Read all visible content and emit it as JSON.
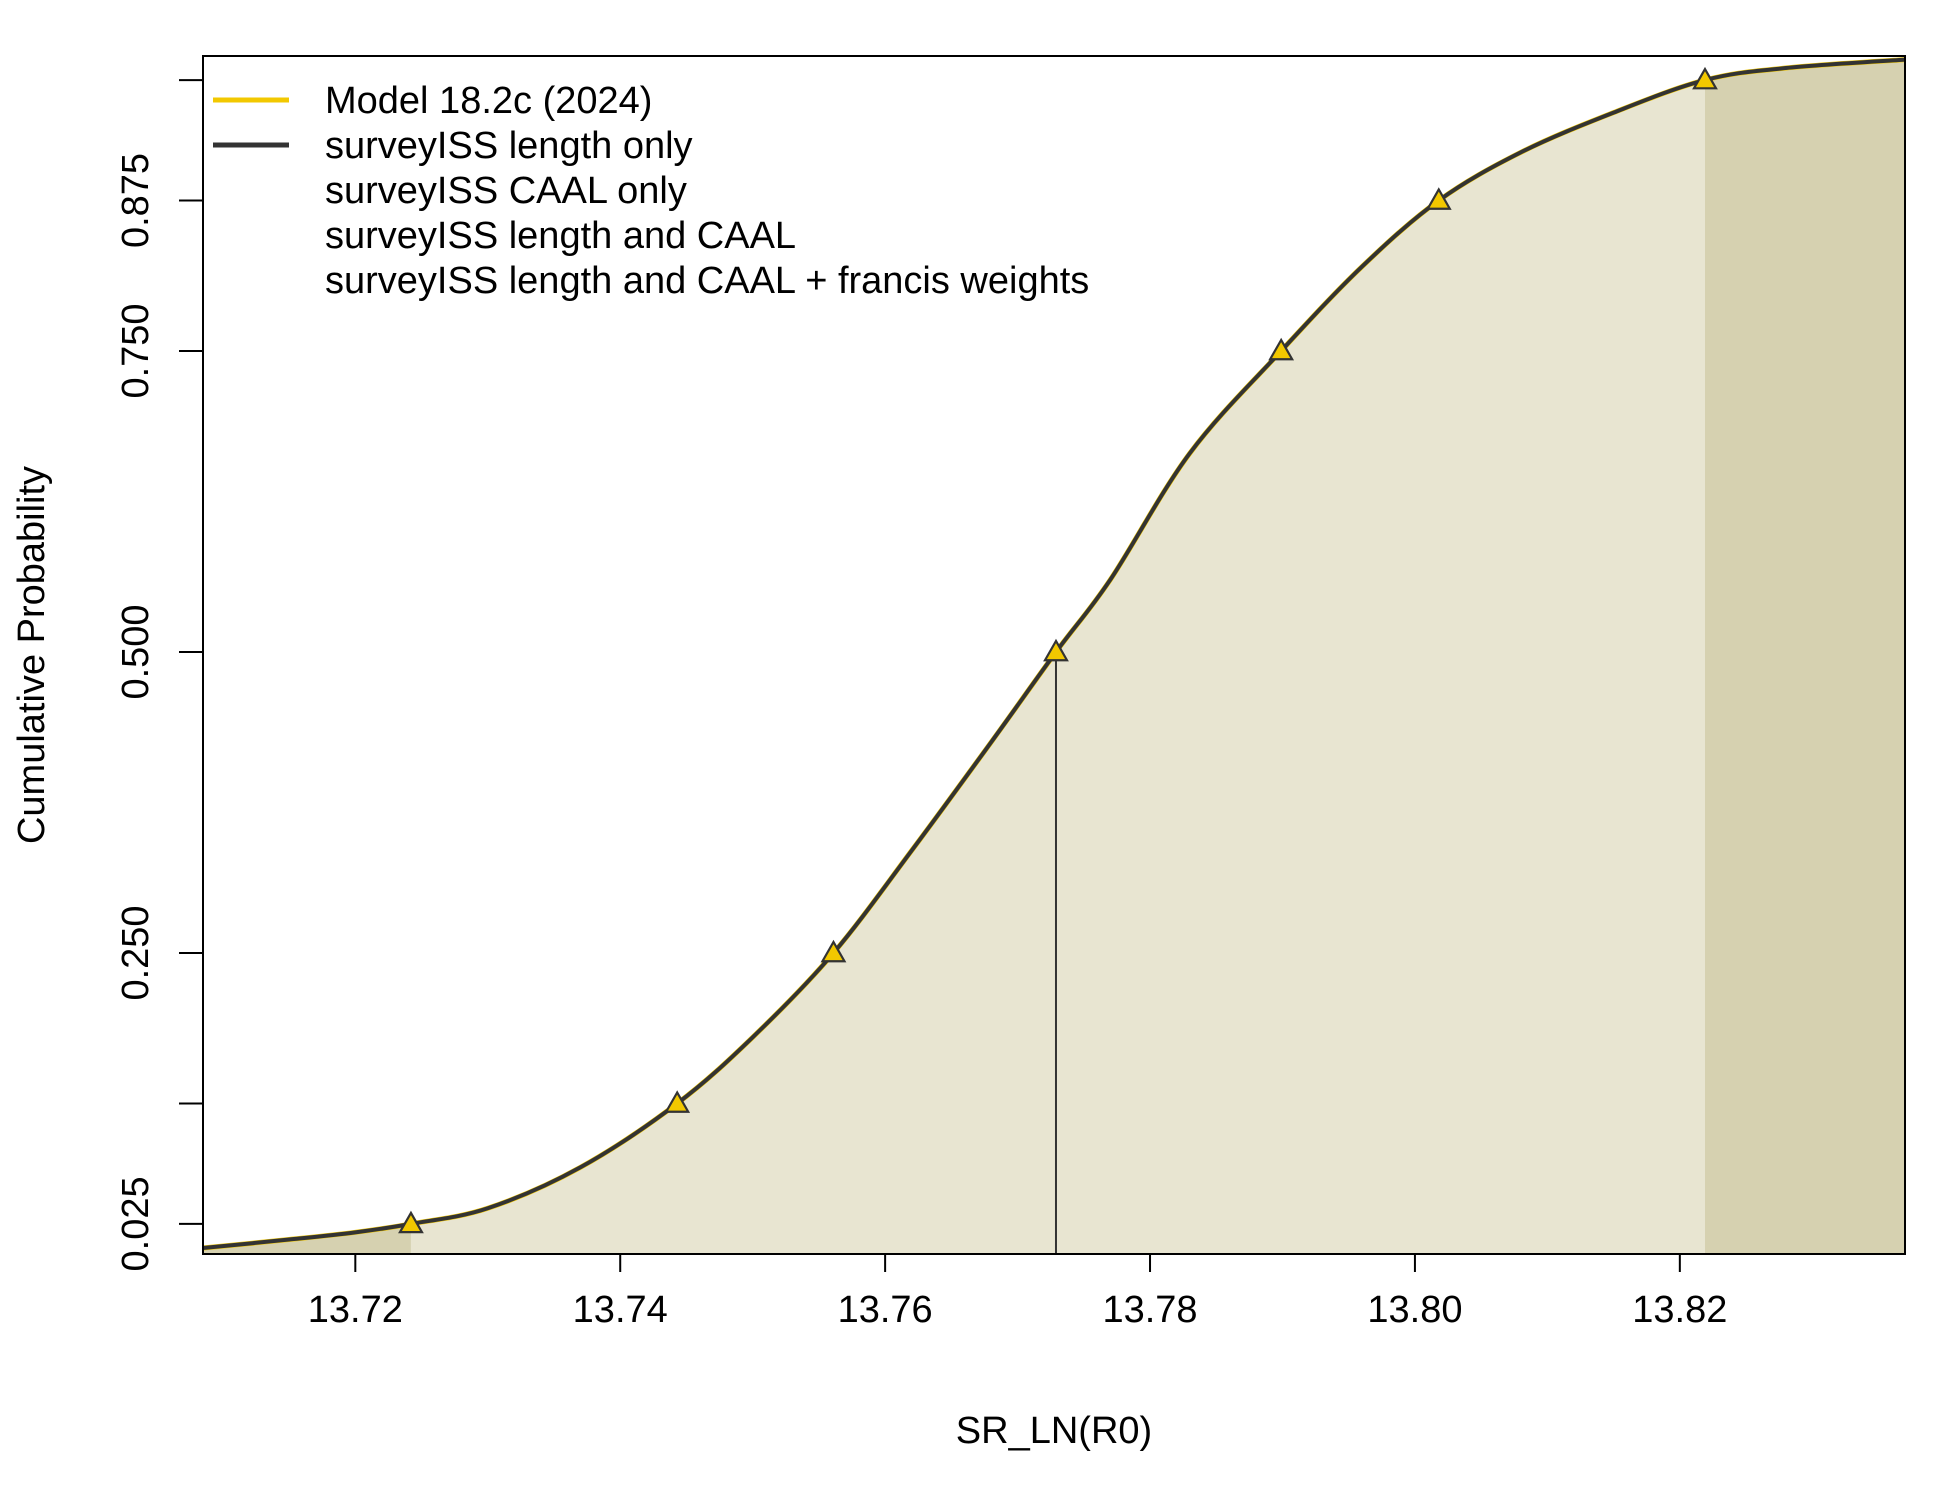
{
  "chart_data": {
    "type": "line",
    "title": "",
    "xlabel": "SR_LN(R0)",
    "ylabel": "Cumulative Probability",
    "xlim": [
      13.7085,
      13.837
    ],
    "ylim": [
      -0.0,
      0.995
    ],
    "x_ticks": [
      {
        "value": 13.72,
        "label": "13.72"
      },
      {
        "value": 13.74,
        "label": "13.74"
      },
      {
        "value": 13.76,
        "label": "13.76"
      },
      {
        "value": 13.78,
        "label": "13.78"
      },
      {
        "value": 13.8,
        "label": "13.80"
      },
      {
        "value": 13.82,
        "label": "13.82"
      }
    ],
    "y_ticks": [
      {
        "value": 0.025,
        "label": "0.025"
      },
      {
        "value": 0.125,
        "label": ""
      },
      {
        "value": 0.25,
        "label": "0.250"
      },
      {
        "value": 0.5,
        "label": "0.500"
      },
      {
        "value": 0.75,
        "label": "0.750"
      },
      {
        "value": 0.875,
        "label": "0.875"
      },
      {
        "value": 0.975,
        "label": ""
      }
    ],
    "series": [
      {
        "name": "Model 18.2c (2024)",
        "color": "#F2C800",
        "x": [
          13.7085,
          13.715,
          13.72,
          13.7242,
          13.73,
          13.737,
          13.7443,
          13.75,
          13.7561,
          13.762,
          13.768,
          13.7729,
          13.777,
          13.783,
          13.7899,
          13.796,
          13.8018,
          13.808,
          13.815,
          13.8219,
          13.828,
          13.837
        ],
        "y": [
          0.005,
          0.012,
          0.018,
          0.025,
          0.038,
          0.072,
          0.125,
          0.18,
          0.25,
          0.335,
          0.425,
          0.5,
          0.56,
          0.665,
          0.75,
          0.82,
          0.875,
          0.915,
          0.948,
          0.975,
          0.985,
          0.992
        ]
      },
      {
        "name": "surveyISS length only",
        "color": "#333333",
        "x": [
          13.7085,
          13.715,
          13.72,
          13.7242,
          13.73,
          13.737,
          13.7443,
          13.75,
          13.7561,
          13.762,
          13.768,
          13.7729,
          13.777,
          13.783,
          13.7899,
          13.796,
          13.8018,
          13.808,
          13.815,
          13.8219,
          13.828,
          13.837
        ],
        "y": [
          0.005,
          0.012,
          0.018,
          0.025,
          0.038,
          0.072,
          0.125,
          0.18,
          0.25,
          0.335,
          0.425,
          0.5,
          0.56,
          0.665,
          0.75,
          0.82,
          0.875,
          0.915,
          0.948,
          0.975,
          0.985,
          0.992
        ]
      }
    ],
    "quantile_markers": {
      "x": [
        13.7242,
        13.7443,
        13.7561,
        13.7729,
        13.7899,
        13.8018,
        13.8219
      ],
      "y": [
        0.025,
        0.125,
        0.25,
        0.5,
        0.75,
        0.875,
        0.975
      ]
    },
    "median_line": {
      "x": 13.7729,
      "y": 0.5
    },
    "shading": {
      "lower_tail_upper_x": 13.7242,
      "upper_tail_lower_x": 13.8219,
      "tail_color": "#D6D1B0",
      "central_color": "#E8E5D1"
    },
    "legend": {
      "position": "top-left",
      "entries": [
        {
          "label": "Model 18.2c (2024)",
          "color": "#F2C800",
          "has_line": true
        },
        {
          "label": "surveyISS length only",
          "color": "#333333",
          "has_line": true
        },
        {
          "label": "surveyISS CAAL only",
          "color": "",
          "has_line": false
        },
        {
          "label": "surveyISS length and CAAL",
          "color": "",
          "has_line": false
        },
        {
          "label": "surveyISS length and CAAL + francis weights",
          "color": "",
          "has_line": false
        }
      ]
    },
    "grid": false
  }
}
